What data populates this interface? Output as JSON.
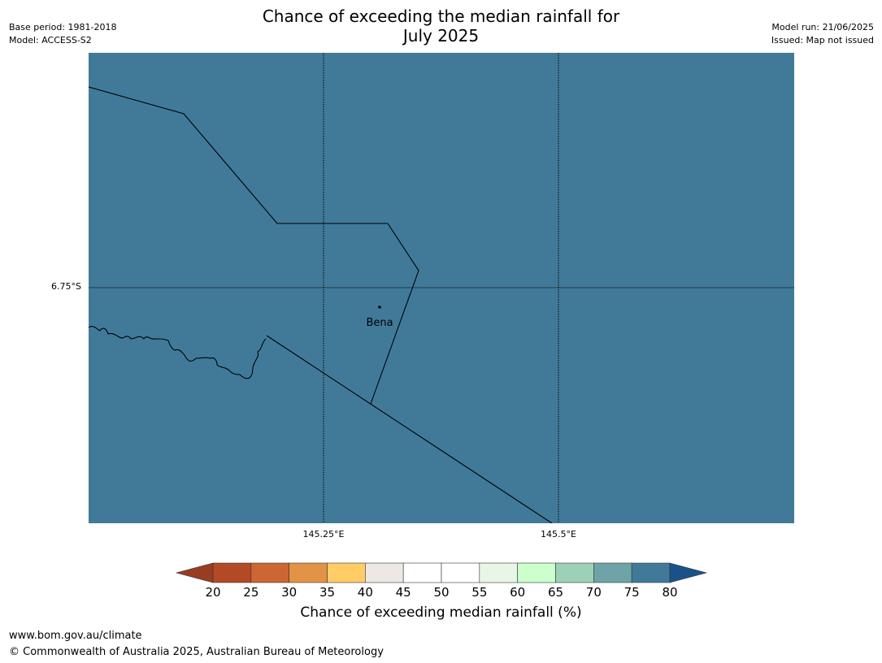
{
  "title": {
    "line1": "Chance of exceeding the median rainfall for",
    "line2": "July 2025"
  },
  "meta_left": {
    "base_period": "Base period: 1981-2018",
    "model": "Model: ACCESS-S2"
  },
  "meta_right": {
    "model_run": "Model run: 21/06/2025",
    "issued": "Issued: Map not issued"
  },
  "map": {
    "fill_color": "#417a99",
    "fill_value_range": [
      75,
      80
    ],
    "latitude_labels": [
      "6.75°S"
    ],
    "longitude_labels": [
      "145.25°E",
      "145.5°E"
    ],
    "places": [
      {
        "name": "Bena"
      }
    ]
  },
  "colorbar": {
    "label": "Chance of exceeding median rainfall (%)",
    "ticks": [
      "20",
      "25",
      "30",
      "35",
      "40",
      "45",
      "50",
      "55",
      "60",
      "65",
      "70",
      "75",
      "80"
    ],
    "under_color": "#993d22",
    "over_color": "#1a5189",
    "bins": [
      {
        "range": "20-25",
        "color": "#b34a26"
      },
      {
        "range": "25-30",
        "color": "#cc6633"
      },
      {
        "range": "30-35",
        "color": "#e39345"
      },
      {
        "range": "35-40",
        "color": "#ffcc66"
      },
      {
        "range": "40-45",
        "color": "#ede8e4"
      },
      {
        "range": "45-50",
        "color": "#ffffff"
      },
      {
        "range": "50-55",
        "color": "#ffffff"
      },
      {
        "range": "55-60",
        "color": "#e8f6e8"
      },
      {
        "range": "60-65",
        "color": "#cbffcc"
      },
      {
        "range": "65-70",
        "color": "#9dd1b7"
      },
      {
        "range": "70-75",
        "color": "#6ea4a8"
      },
      {
        "range": "75-80",
        "color": "#417a99"
      }
    ]
  },
  "footer": {
    "url": "www.bom.gov.au/climate",
    "copyright": "© Commonwealth of Australia 2025, Australian Bureau of Meteorology"
  }
}
